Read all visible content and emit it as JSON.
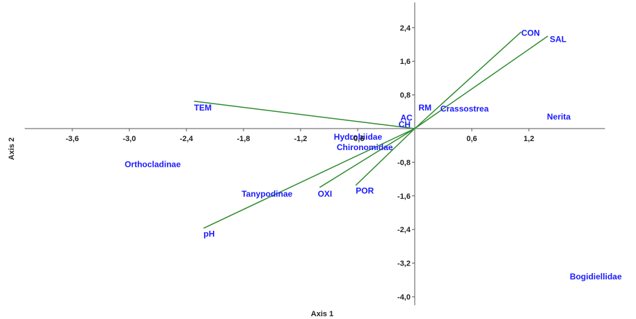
{
  "chart_data": {
    "type": "scatter",
    "subtype": "biplot",
    "title": "",
    "xlabel": "Axis 1",
    "ylabel": "Axis 2",
    "xlim": [
      -4.1,
      2.0
    ],
    "ylim": [
      -4.2,
      3.0
    ],
    "xticks": [
      -3.6,
      -3.0,
      -2.4,
      -1.8,
      -1.2,
      -0.6,
      0.6,
      1.2
    ],
    "xtick_labels": [
      "-3,6",
      "-3,0",
      "-2,4",
      "-1,8",
      "-1,2",
      "-0,6",
      "0,6",
      "1,2"
    ],
    "yticks": [
      2.4,
      1.6,
      0.8,
      -0.8,
      -1.6,
      -2.4,
      -3.2,
      -4.0
    ],
    "ytick_labels": [
      "2,4",
      "1,6",
      "0,8",
      "-0,8",
      "-1,6",
      "-2,4",
      "-3,2",
      "-4,0"
    ],
    "grid": false,
    "colors": {
      "vector": "#2e8b2e",
      "label": "#1a1aff",
      "axis": "#555555"
    },
    "vectors": [
      {
        "name": "TEM",
        "x": -2.32,
        "y": 0.65
      },
      {
        "name": "CON",
        "x": 1.12,
        "y": 2.3
      },
      {
        "name": "SAL",
        "x": 1.4,
        "y": 2.2
      },
      {
        "name": "pH",
        "x": -2.22,
        "y": -2.37
      },
      {
        "name": "OXI",
        "x": -1.0,
        "y": -1.4
      },
      {
        "name": "POR",
        "x": -0.62,
        "y": -1.35
      }
    ],
    "points": [
      {
        "name": "TEM",
        "x": -2.32,
        "y": 0.5
      },
      {
        "name": "CON",
        "x": 1.12,
        "y": 2.27
      },
      {
        "name": "SAL",
        "x": 1.42,
        "y": 2.12
      },
      {
        "name": "pH",
        "x": -2.22,
        "y": -2.5
      },
      {
        "name": "OXI",
        "x": -1.02,
        "y": -1.55
      },
      {
        "name": "POR",
        "x": -0.62,
        "y": -1.48
      },
      {
        "name": "Orthocladinae",
        "x": -3.05,
        "y": -0.85
      },
      {
        "name": "Tanypodinae",
        "x": -1.82,
        "y": -1.55
      },
      {
        "name": "Hydrobiidae",
        "x": -0.85,
        "y": -0.2
      },
      {
        "name": "Chironomidae",
        "x": -0.82,
        "y": -0.45
      },
      {
        "name": "RM",
        "x": 0.04,
        "y": 0.5
      },
      {
        "name": "Crassostrea",
        "x": 0.27,
        "y": 0.47
      },
      {
        "name": "AC",
        "x": -0.15,
        "y": 0.26
      },
      {
        "name": "CH",
        "x": -0.17,
        "y": 0.1
      },
      {
        "name": "Nerita",
        "x": 1.39,
        "y": 0.28
      },
      {
        "name": "Bogidiellidae",
        "x": 1.63,
        "y": -3.52
      }
    ]
  }
}
